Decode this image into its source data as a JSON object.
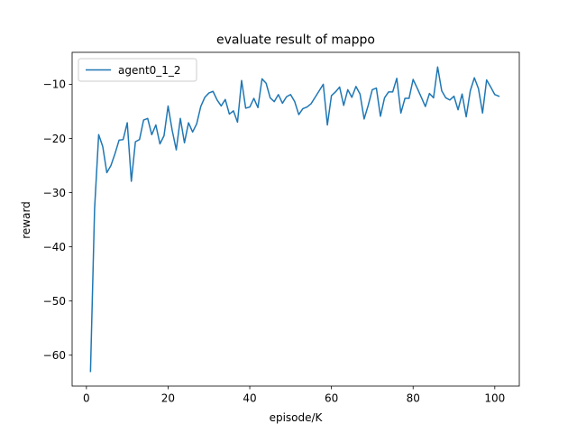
{
  "chart_data": {
    "type": "line",
    "title": "evaluate result of mappo",
    "xlabel": "episode/K",
    "ylabel": "reward",
    "xlim": [
      -3.5,
      106.0
    ],
    "ylim": [
      -65.7,
      -4.1
    ],
    "xticks": [
      0,
      20,
      40,
      60,
      80,
      100
    ],
    "yticks": [
      -60,
      -50,
      -40,
      -30,
      -20,
      -10
    ],
    "xtick_labels": [
      "0",
      "20",
      "40",
      "60",
      "80",
      "100"
    ],
    "ytick_labels": [
      "−60",
      "−50",
      "−40",
      "−30",
      "−20",
      "−10"
    ],
    "grid": false,
    "legend_position": "upper-left",
    "series": [
      {
        "name": "agent0_1_2",
        "color": "#1f77b4",
        "x": [
          1,
          2,
          3,
          4,
          5,
          6,
          7,
          8,
          9,
          10,
          11,
          12,
          13,
          14,
          15,
          16,
          17,
          18,
          19,
          20,
          21,
          22,
          23,
          24,
          25,
          26,
          27,
          28,
          29,
          30,
          31,
          32,
          33,
          34,
          35,
          36,
          37,
          38,
          39,
          40,
          41,
          42,
          43,
          44,
          45,
          46,
          47,
          48,
          49,
          50,
          51,
          52,
          53,
          54,
          55,
          56,
          57,
          58,
          59,
          60,
          61,
          62,
          63,
          64,
          65,
          66,
          67,
          68,
          69,
          70,
          71,
          72,
          73,
          74,
          75,
          76,
          77,
          78,
          79,
          80,
          81,
          82,
          83,
          84,
          85,
          86,
          87,
          88,
          89,
          90,
          91,
          92,
          93,
          94,
          95,
          96,
          97,
          98,
          99,
          100,
          101
        ],
        "y": [
          -63.0,
          -33.0,
          -19.3,
          -21.5,
          -26.3,
          -25.0,
          -22.8,
          -20.3,
          -20.2,
          -17.1,
          -27.9,
          -20.6,
          -20.2,
          -16.6,
          -16.3,
          -19.3,
          -17.5,
          -21.0,
          -19.5,
          -14.0,
          -18.5,
          -22.1,
          -16.3,
          -20.8,
          -17.1,
          -18.8,
          -17.3,
          -14.1,
          -12.4,
          -11.6,
          -11.3,
          -12.9,
          -14.0,
          -12.8,
          -15.5,
          -14.9,
          -17.0,
          -9.3,
          -14.4,
          -14.2,
          -12.6,
          -14.3,
          -9.0,
          -9.8,
          -12.5,
          -13.2,
          -11.9,
          -13.5,
          -12.3,
          -11.9,
          -13.2,
          -15.6,
          -14.5,
          -14.2,
          -13.6,
          -12.4,
          -11.2,
          -10.0,
          -17.5,
          -12.1,
          -11.4,
          -10.5,
          -13.9,
          -11.0,
          -12.4,
          -10.4,
          -11.8,
          -16.4,
          -13.9,
          -11.0,
          -10.7,
          -15.9,
          -12.5,
          -11.4,
          -11.4,
          -8.9,
          -15.3,
          -12.6,
          -12.6,
          -9.1,
          -10.7,
          -12.4,
          -14.1,
          -11.7,
          -12.5,
          -6.8,
          -11.2,
          -12.5,
          -12.9,
          -12.2,
          -14.7,
          -11.8,
          -16.0,
          -11.2,
          -8.8,
          -10.8,
          -15.3,
          -9.2,
          -10.5,
          -11.9,
          -12.2
        ]
      }
    ]
  }
}
